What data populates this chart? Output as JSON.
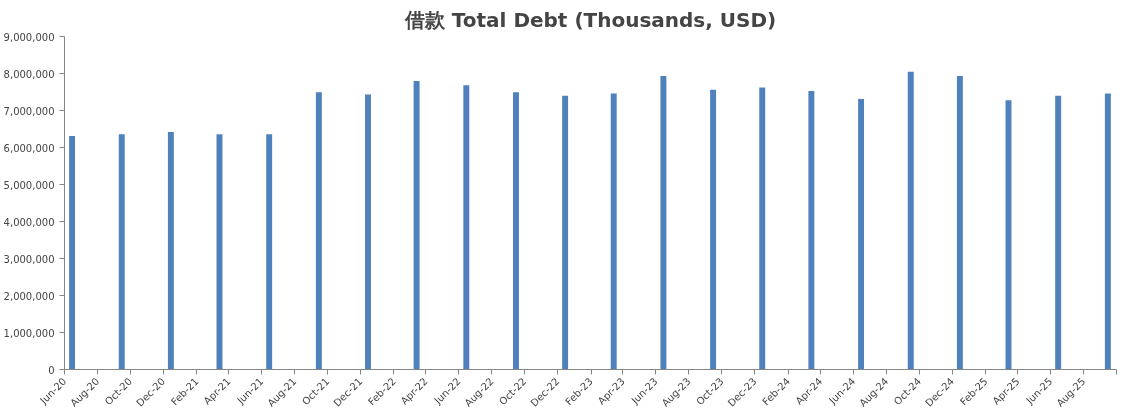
{
  "chart_data": {
    "type": "bar",
    "title": "借款 Total Debt (Thousands, USD)",
    "x": [
      "2020-06-15",
      "2020-09-15",
      "2020-12-15",
      "2021-03-15",
      "2021-06-15",
      "2021-09-15",
      "2021-12-15",
      "2022-03-15",
      "2022-06-15",
      "2022-09-15",
      "2022-12-15",
      "2023-03-15",
      "2023-06-15",
      "2023-09-15",
      "2023-12-15",
      "2024-03-15",
      "2024-06-15",
      "2024-09-15",
      "2024-12-15",
      "2025-03-15",
      "2025-06-15",
      "2025-09-15"
    ],
    "values": [
      6310000,
      6360000,
      6420000,
      6360000,
      6360000,
      7490000,
      7430000,
      7800000,
      7680000,
      7490000,
      7400000,
      7460000,
      7930000,
      7560000,
      7620000,
      7530000,
      7310000,
      8050000,
      7930000,
      7280000,
      7400000,
      7460000
    ],
    "color": "#4f81bd",
    "ylim": [
      0,
      9000000
    ],
    "yticks": [
      0,
      {
        "value": 1000000,
        "label": "1,000,000"
      },
      {
        "value": 2000000,
        "label": "2,000,000"
      },
      {
        "value": 3000000,
        "label": "3,000,000"
      },
      {
        "value": 4000000,
        "label": "4,000,000"
      },
      {
        "value": 5000000,
        "label": "5,000,000"
      },
      {
        "value": 6000000,
        "label": "6,000,000"
      },
      {
        "value": 7000000,
        "label": "7,000,000"
      },
      {
        "value": 8000000,
        "label": "8,000,000"
      },
      {
        "value": 9000000,
        "label": "9,000,000"
      }
    ],
    "xlim": [
      "2020-06-01",
      "2025-10-01"
    ],
    "xticks": [
      {
        "value": "2020-06-01",
        "label": "Jun-20"
      },
      {
        "value": "2020-08-01",
        "label": "Aug-20"
      },
      {
        "value": "2020-10-01",
        "label": "Oct-20"
      },
      {
        "value": "2020-12-01",
        "label": "Dec-20"
      },
      {
        "value": "2021-02-01",
        "label": "Feb-21"
      },
      {
        "value": "2021-04-01",
        "label": "Apr-21"
      },
      {
        "value": "2021-06-01",
        "label": "Jun-21"
      },
      {
        "value": "2021-08-01",
        "label": "Aug-21"
      },
      {
        "value": "2021-10-01",
        "label": "Oct-21"
      },
      {
        "value": "2021-12-01",
        "label": "Dec-21"
      },
      {
        "value": "2022-02-01",
        "label": "Feb-22"
      },
      {
        "value": "2022-04-01",
        "label": "Apr-22"
      },
      {
        "value": "2022-06-01",
        "label": "Jun-22"
      },
      {
        "value": "2022-08-01",
        "label": "Aug-22"
      },
      {
        "value": "2022-10-01",
        "label": "Oct-22"
      },
      {
        "value": "2022-12-01",
        "label": "Dec-22"
      },
      {
        "value": "2023-02-01",
        "label": "Feb-23"
      },
      {
        "value": "2023-04-01",
        "label": "Apr-23"
      },
      {
        "value": "2023-06-01",
        "label": "Jun-23"
      },
      {
        "value": "2023-08-01",
        "label": "Aug-23"
      },
      {
        "value": "2023-10-01",
        "label": "Oct-23"
      },
      {
        "value": "2023-12-01",
        "label": "Dec-23"
      },
      {
        "value": "2024-02-01",
        "label": "Feb-24"
      },
      {
        "value": "2024-04-01",
        "label": "Apr-24"
      },
      {
        "value": "2024-06-01",
        "label": "Jun-24"
      },
      {
        "value": "2024-08-01",
        "label": "Aug-24"
      },
      {
        "value": "2024-10-01",
        "label": "Oct-24"
      },
      {
        "value": "2024-12-01",
        "label": "Dec-24"
      },
      {
        "value": "2025-02-01",
        "label": "Feb-25"
      },
      {
        "value": "2025-04-01",
        "label": "Apr-25"
      },
      {
        "value": "2025-06-01",
        "label": "Jun-25"
      },
      {
        "value": "2025-08-01",
        "label": "Aug-25"
      },
      {
        "value": "2025-10-01",
        "label": null
      }
    ],
    "grid": false
  }
}
